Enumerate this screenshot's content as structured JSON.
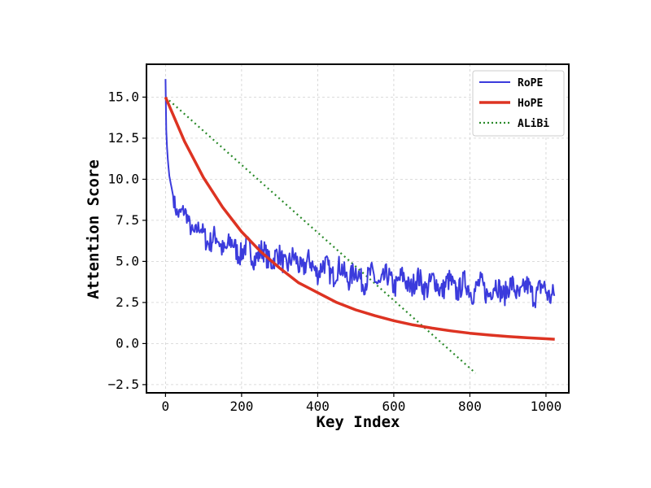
{
  "chart_data": {
    "type": "line",
    "xlabel": "Key Index",
    "ylabel": "Attention Score",
    "xlim": [
      -50,
      1060
    ],
    "ylim": [
      -3.0,
      17.0
    ],
    "xticks": [
      0,
      200,
      400,
      600,
      800,
      1000
    ],
    "yticks": [
      -2.5,
      0.0,
      2.5,
      5.0,
      7.5,
      10.0,
      12.5,
      15.0
    ],
    "xtick_labels": [
      "0",
      "200",
      "400",
      "600",
      "800",
      "1000"
    ],
    "ytick_labels": [
      "−2.5",
      "0.0",
      "2.5",
      "5.0",
      "7.5",
      "10.0",
      "12.5",
      "15.0"
    ],
    "grid": true,
    "legend_position": "top-right",
    "series": [
      {
        "name": "RoPE",
        "color": "#3b3bdc",
        "style": "solid",
        "x": [
          0,
          2,
          5,
          10,
          20,
          30,
          50,
          75,
          100,
          150,
          200,
          250,
          300,
          350,
          400,
          450,
          500,
          550,
          600,
          650,
          700,
          750,
          800,
          850,
          900,
          950,
          1000,
          1023
        ],
        "y": [
          16.1,
          13.0,
          11.5,
          10.2,
          9.0,
          8.3,
          7.7,
          7.0,
          6.6,
          6.0,
          5.7,
          5.4,
          5.1,
          4.9,
          4.6,
          4.4,
          4.1,
          3.9,
          3.8,
          3.7,
          3.6,
          3.5,
          3.4,
          3.3,
          3.3,
          3.2,
          3.2,
          3.1
        ]
      },
      {
        "name": "HoPE",
        "color": "#dd3322",
        "style": "solid",
        "x": [
          0,
          50,
          100,
          150,
          200,
          250,
          300,
          350,
          400,
          450,
          500,
          550,
          600,
          650,
          700,
          750,
          800,
          850,
          900,
          950,
          1000,
          1023
        ],
        "y": [
          15.0,
          12.3,
          10.1,
          8.3,
          6.8,
          5.6,
          4.6,
          3.7,
          3.1,
          2.5,
          2.05,
          1.7,
          1.39,
          1.14,
          0.94,
          0.77,
          0.63,
          0.52,
          0.43,
          0.35,
          0.29,
          0.26
        ]
      },
      {
        "name": "ALiBi",
        "color": "#2a8a2a",
        "style": "dotted",
        "x": [
          0,
          815
        ],
        "y": [
          15.0,
          -1.8
        ]
      }
    ]
  }
}
